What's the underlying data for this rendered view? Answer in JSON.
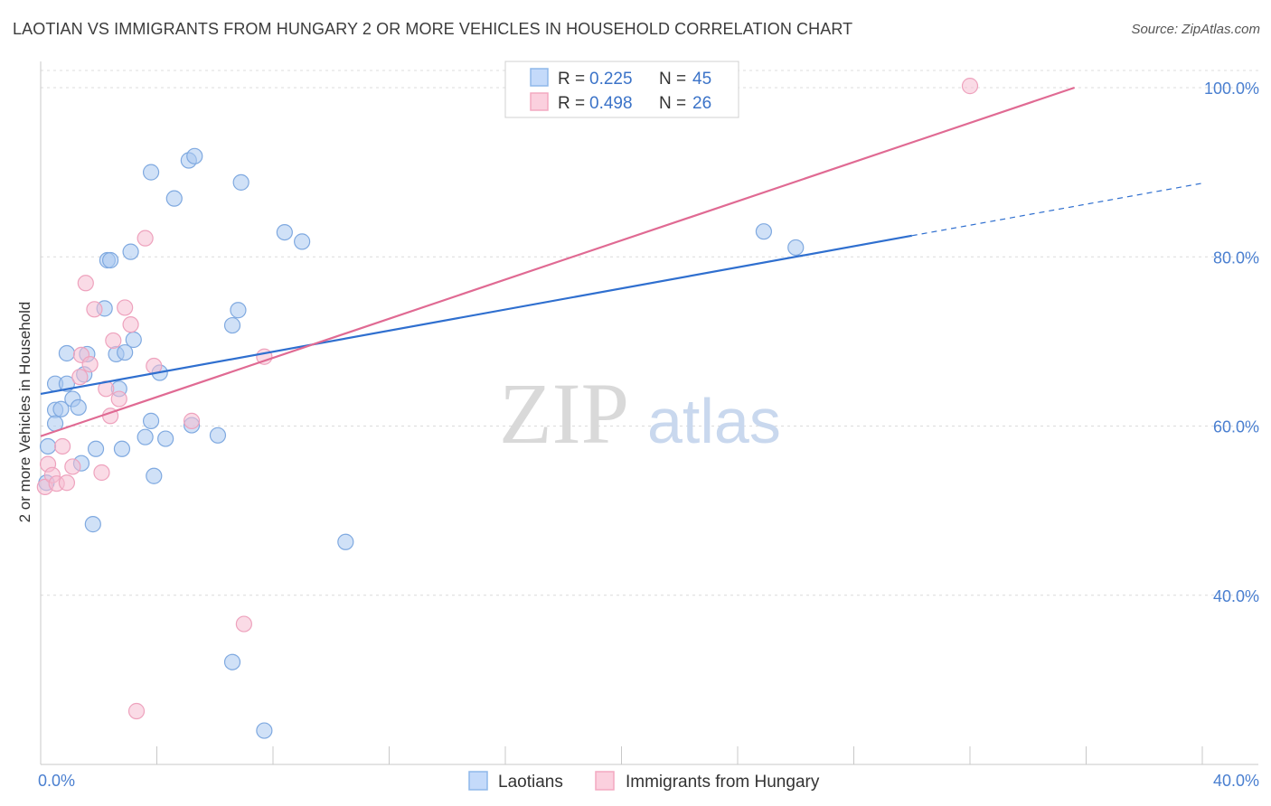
{
  "title": "LAOTIAN VS IMMIGRANTS FROM HUNGARY 2 OR MORE VEHICLES IN HOUSEHOLD CORRELATION CHART",
  "source": "Source: ZipAtlas.com",
  "watermark": {
    "zip": "ZIP",
    "atlas": "atlas"
  },
  "colors": {
    "blue": "#8fb8ea",
    "blue_line": "#2f6fcf",
    "pink": "#f3a9c1",
    "pink_line": "#e06a93",
    "tick_label": "#4a7fd0"
  },
  "legend": {
    "rows": [
      {
        "r_label": "R = ",
        "r_value": "0.225",
        "n_label": "N = ",
        "n_value": "45"
      },
      {
        "r_label": "R = ",
        "r_value": "0.498",
        "n_label": "N = ",
        "n_value": "26"
      }
    ]
  },
  "bottom_legend": {
    "laotians": "Laotians",
    "hungary": "Immigrants from Hungary"
  },
  "chart_data": {
    "type": "scatter",
    "title": "LAOTIAN VS IMMIGRANTS FROM HUNGARY 2 OR MORE VEHICLES IN HOUSEHOLD CORRELATION CHART",
    "xlabel": "",
    "ylabel": "2 or more Vehicles in Household",
    "xlim": [
      0,
      40
    ],
    "ylim": [
      20,
      102
    ],
    "x_tick_labels": [
      "0.0%",
      "40.0%"
    ],
    "y_ticks": [
      40,
      60,
      80,
      100
    ],
    "y_tick_labels": [
      "40.0%",
      "60.0%",
      "80.0%",
      "100.0%"
    ],
    "grid": true,
    "series": [
      {
        "name": "Laotians",
        "color": "#8fb8ea",
        "r": 0.225,
        "n": 45,
        "trend": {
          "x0": 0,
          "y0": 63.8,
          "x1": 30,
          "y1": 82.5,
          "dash_to_x": 40,
          "dash_to_y": 88.7
        },
        "points": [
          [
            0.2,
            53.3
          ],
          [
            0.25,
            57.6
          ],
          [
            0.5,
            61.9
          ],
          [
            0.5,
            60.3
          ],
          [
            0.5,
            65.0
          ],
          [
            0.7,
            62.0
          ],
          [
            0.9,
            68.6
          ],
          [
            0.9,
            65.0
          ],
          [
            1.1,
            63.2
          ],
          [
            1.3,
            62.2
          ],
          [
            1.4,
            55.6
          ],
          [
            1.5,
            66.1
          ],
          [
            1.6,
            68.5
          ],
          [
            1.8,
            48.4
          ],
          [
            1.9,
            57.3
          ],
          [
            2.2,
            73.9
          ],
          [
            2.3,
            79.6
          ],
          [
            2.4,
            79.6
          ],
          [
            2.6,
            68.5
          ],
          [
            2.7,
            64.4
          ],
          [
            2.8,
            57.3
          ],
          [
            2.9,
            68.7
          ],
          [
            3.1,
            80.6
          ],
          [
            3.2,
            70.2
          ],
          [
            3.6,
            58.7
          ],
          [
            3.8,
            60.6
          ],
          [
            3.8,
            90.0
          ],
          [
            3.9,
            54.1
          ],
          [
            4.1,
            66.3
          ],
          [
            4.3,
            58.5
          ],
          [
            4.6,
            86.9
          ],
          [
            5.1,
            91.4
          ],
          [
            5.2,
            60.1
          ],
          [
            5.3,
            91.9
          ],
          [
            6.1,
            58.9
          ],
          [
            6.6,
            71.9
          ],
          [
            6.6,
            32.1
          ],
          [
            6.8,
            73.7
          ],
          [
            6.9,
            88.8
          ],
          [
            7.7,
            24.0
          ],
          [
            8.4,
            82.9
          ],
          [
            9.0,
            81.8
          ],
          [
            10.5,
            46.3
          ],
          [
            24.9,
            83.0
          ],
          [
            26.0,
            81.1
          ]
        ]
      },
      {
        "name": "Immigrants from Hungary",
        "color": "#f3a9c1",
        "r": 0.498,
        "n": 26,
        "trend": {
          "x0": 0,
          "y0": 58.8,
          "x1": 35.6,
          "y1": 100.0
        },
        "points": [
          [
            0.15,
            52.8
          ],
          [
            0.25,
            55.5
          ],
          [
            0.4,
            54.2
          ],
          [
            0.55,
            53.2
          ],
          [
            0.75,
            57.6
          ],
          [
            0.9,
            53.3
          ],
          [
            1.1,
            55.2
          ],
          [
            1.35,
            65.8
          ],
          [
            1.4,
            68.4
          ],
          [
            1.55,
            76.9
          ],
          [
            1.7,
            67.3
          ],
          [
            1.85,
            73.8
          ],
          [
            2.1,
            54.5
          ],
          [
            2.25,
            64.4
          ],
          [
            2.4,
            61.2
          ],
          [
            2.5,
            70.1
          ],
          [
            2.7,
            63.2
          ],
          [
            2.9,
            74.0
          ],
          [
            3.1,
            72.0
          ],
          [
            3.6,
            82.2
          ],
          [
            3.9,
            67.1
          ],
          [
            5.2,
            60.6
          ],
          [
            7.0,
            36.6
          ],
          [
            7.7,
            68.2
          ],
          [
            3.3,
            26.3
          ],
          [
            32.0,
            100.2
          ]
        ]
      }
    ]
  }
}
